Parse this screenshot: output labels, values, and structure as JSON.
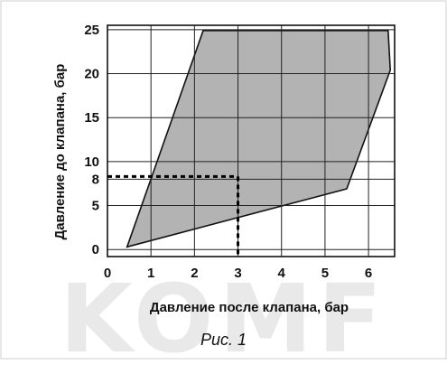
{
  "chart_data": {
    "type": "area",
    "xlabel": "Давление после клапана, бар",
    "ylabel": "Давление до клапана, бар",
    "caption": "Рис. 1",
    "watermark": "KOMF",
    "x_ticks": [
      0,
      1,
      2,
      3,
      4,
      5,
      6
    ],
    "y_ticks": [
      0,
      5,
      8,
      10,
      15,
      20,
      25
    ],
    "xlim": [
      0,
      6.6
    ],
    "ylim": [
      -0.8,
      25.5
    ],
    "grid": true,
    "region": {
      "fill": "#b3b3b3",
      "points": [
        [
          0.45,
          0.3
        ],
        [
          2.2,
          24.9
        ],
        [
          6.45,
          24.9
        ],
        [
          6.5,
          20.4
        ],
        [
          5.5,
          6.9
        ],
        [
          0.45,
          0.3
        ]
      ]
    },
    "example": {
      "x": 3,
      "y": 8.3,
      "style": "dashed"
    }
  }
}
